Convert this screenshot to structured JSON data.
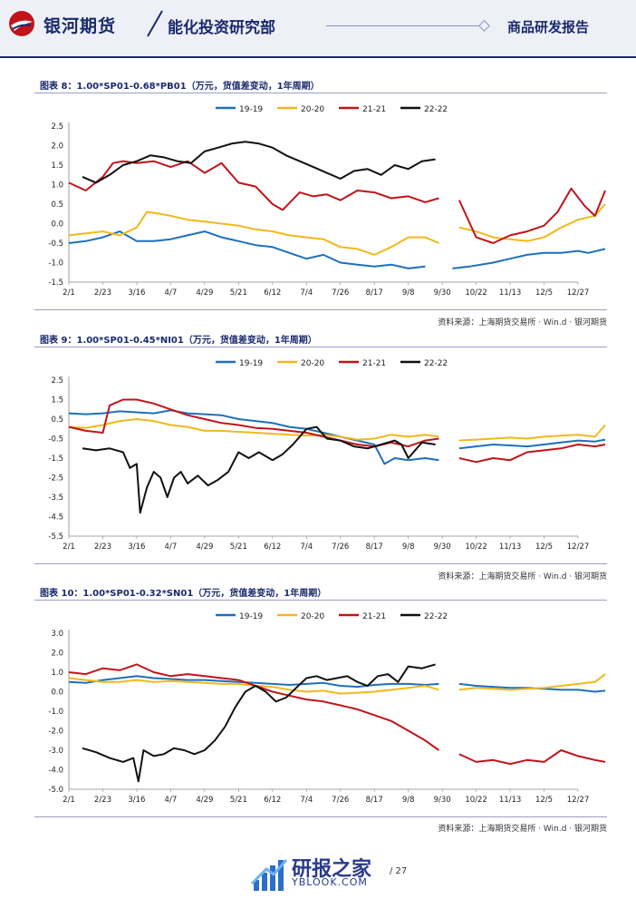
{
  "header": {
    "company": "银河期货",
    "department": "能化投资研究部",
    "report_type": "商品研发报告"
  },
  "charts_meta": [
    {
      "title": "图表 8：1.00*SP01-0.68*PB01（万元，货值差变动，1年周期）",
      "source": "资料来源：上海期货交易所 · Win.d · 银河期货"
    },
    {
      "title": "图表 9：1.00*SP01-0.45*NI01（万元，货值差变动，1年周期）",
      "source": "资料来源：上海期货交易所 · Win.d · 银河期货"
    },
    {
      "title": "图表 10：1.00*SP01-0.32*SN01（万元，货值差变动，1年周期）",
      "source": "资料来源：上海期货交易所 · Win.d · 银河期货"
    }
  ],
  "colors": {
    "s1919": "#1f6fba",
    "s2020": "#f2b81c",
    "s2121": "#c0141b",
    "s2222": "#111111"
  },
  "chart_data": [
    {
      "type": "line",
      "title": "图表 8：1.00*SP01-0.68*PB01（万元，货值差变动，1年周期）",
      "categories": [
        "2/1",
        "2/23",
        "3/16",
        "4/7",
        "4/29",
        "5/21",
        "6/12",
        "7/4",
        "7/26",
        "8/17",
        "9/8",
        "9/30",
        "10/22",
        "11/13",
        "12/5",
        "12/27"
      ],
      "ylim": [
        -1.5,
        2.5
      ],
      "yticks": [
        "2.5",
        "2.0",
        "1.5",
        "1.0",
        "0.5",
        "0.0",
        "-0.5",
        "-1.0",
        "-1.5"
      ],
      "series": [
        {
          "name": "19-19",
          "x": [
            0,
            0.5,
            1,
            1.5,
            2,
            2.5,
            3,
            3.5,
            4,
            4.5,
            5,
            5.5,
            6,
            6.5,
            7,
            7.5,
            8,
            8.5,
            9,
            9.5,
            10,
            10.5,
            11.3,
            11.8,
            12.5,
            13,
            13.5,
            14,
            14.5,
            15,
            15.3,
            15.8
          ],
          "values": [
            -0.5,
            -0.45,
            -0.35,
            -0.2,
            -0.45,
            -0.45,
            -0.4,
            -0.3,
            -0.2,
            -0.35,
            -0.45,
            -0.55,
            -0.6,
            -0.75,
            -0.9,
            -0.8,
            -1.0,
            -1.05,
            -1.1,
            -1.05,
            -1.15,
            -1.1,
            -1.15,
            -1.1,
            -1.0,
            -0.9,
            -0.8,
            -0.75,
            -0.75,
            -0.7,
            -0.75,
            -0.65
          ]
        },
        {
          "name": "20-20",
          "x": [
            0,
            0.5,
            1,
            1.5,
            2,
            2.3,
            2.7,
            3,
            3.5,
            4,
            4.5,
            5,
            5.5,
            6,
            6.5,
            7,
            7.5,
            8,
            8.5,
            9,
            9.5,
            10,
            10.5,
            10.9,
            11.5,
            12,
            12.5,
            13,
            13.5,
            14,
            14.5,
            15,
            15.5,
            15.8
          ],
          "values": [
            -0.3,
            -0.25,
            -0.2,
            -0.3,
            -0.1,
            0.3,
            0.25,
            0.2,
            0.1,
            0.05,
            0.0,
            -0.05,
            -0.15,
            -0.2,
            -0.3,
            -0.35,
            -0.4,
            -0.6,
            -0.65,
            -0.8,
            -0.6,
            -0.35,
            -0.35,
            -0.5,
            -0.1,
            -0.2,
            -0.35,
            -0.4,
            -0.45,
            -0.35,
            -0.1,
            0.1,
            0.2,
            0.5
          ]
        },
        {
          "name": "21-21",
          "x": [
            0,
            0.5,
            1,
            1.3,
            1.6,
            2,
            2.5,
            3,
            3.5,
            4,
            4.5,
            5,
            5.5,
            6,
            6.3,
            6.8,
            7.2,
            7.6,
            8,
            8.5,
            9,
            9.5,
            10,
            10.5,
            10.9,
            11.5,
            12,
            12.5,
            13,
            13.5,
            14,
            14.4,
            14.8,
            15.2,
            15.5,
            15.8
          ],
          "values": [
            1.05,
            0.85,
            1.2,
            1.55,
            1.6,
            1.55,
            1.6,
            1.45,
            1.6,
            1.3,
            1.55,
            1.05,
            0.95,
            0.5,
            0.35,
            0.8,
            0.7,
            0.75,
            0.6,
            0.85,
            0.8,
            0.65,
            0.7,
            0.55,
            0.65,
            0.6,
            -0.35,
            -0.5,
            -0.3,
            -0.2,
            -0.05,
            0.3,
            0.9,
            0.45,
            0.2,
            0.85
          ]
        },
        {
          "name": "22-22",
          "x": [
            0.4,
            0.8,
            1.2,
            1.6,
            2,
            2.4,
            2.8,
            3.2,
            3.6,
            4,
            4.4,
            4.8,
            5.2,
            5.6,
            6,
            6.4,
            6.8,
            7.2,
            7.6,
            8,
            8.4,
            8.8,
            9.2,
            9.6,
            10,
            10.4,
            10.8
          ],
          "values": [
            1.2,
            1.05,
            1.25,
            1.5,
            1.6,
            1.75,
            1.7,
            1.6,
            1.55,
            1.85,
            1.95,
            2.05,
            2.1,
            2.05,
            1.95,
            1.75,
            1.6,
            1.45,
            1.3,
            1.15,
            1.35,
            1.4,
            1.25,
            1.5,
            1.4,
            1.6,
            1.65
          ]
        }
      ]
    },
    {
      "type": "line",
      "title": "图表 9：1.00*SP01-0.45*NI01（万元，货值差变动，1年周期）",
      "categories": [
        "2/1",
        "2/23",
        "3/16",
        "4/7",
        "4/29",
        "5/21",
        "6/12",
        "7/4",
        "7/26",
        "8/17",
        "9/8",
        "9/30",
        "10/22",
        "11/13",
        "12/5",
        "12/27"
      ],
      "ylim": [
        -5.5,
        2.5
      ],
      "yticks": [
        "2.5",
        "1.5",
        "0.5",
        "-0.5",
        "-1.5",
        "-2.5",
        "-3.5",
        "-4.5",
        "-5.5"
      ],
      "series": [
        {
          "name": "19-19",
          "x": [
            0,
            0.5,
            1,
            1.5,
            2,
            2.5,
            3,
            3.5,
            4,
            4.5,
            5,
            5.5,
            6,
            6.5,
            7,
            7.5,
            8,
            8.5,
            9,
            9.3,
            9.6,
            10,
            10.5,
            10.9,
            11.5,
            12,
            12.5,
            13,
            13.5,
            14,
            14.5,
            15,
            15.5,
            15.8
          ],
          "values": [
            0.8,
            0.75,
            0.8,
            0.9,
            0.85,
            0.8,
            0.95,
            0.8,
            0.75,
            0.7,
            0.5,
            0.4,
            0.3,
            0.1,
            0.0,
            -0.2,
            -0.4,
            -0.6,
            -0.8,
            -1.8,
            -1.5,
            -1.6,
            -1.5,
            -1.6,
            -1.0,
            -0.9,
            -0.8,
            -0.85,
            -0.9,
            -0.8,
            -0.7,
            -0.6,
            -0.65,
            -0.55
          ]
        },
        {
          "name": "20-20",
          "x": [
            0,
            0.5,
            1,
            1.5,
            2,
            2.5,
            3,
            3.5,
            4,
            4.5,
            5,
            5.5,
            6,
            6.5,
            7,
            7.5,
            8,
            8.5,
            9,
            9.5,
            10,
            10.5,
            10.9,
            11.5,
            12,
            12.5,
            13,
            13.5,
            14,
            14.5,
            15,
            15.5,
            15.8
          ],
          "values": [
            0.1,
            0.05,
            0.2,
            0.4,
            0.5,
            0.4,
            0.2,
            0.1,
            -0.1,
            -0.1,
            -0.15,
            -0.2,
            -0.25,
            -0.3,
            -0.35,
            -0.3,
            -0.4,
            -0.55,
            -0.5,
            -0.3,
            -0.4,
            -0.3,
            -0.4,
            -0.6,
            -0.55,
            -0.5,
            -0.45,
            -0.5,
            -0.4,
            -0.35,
            -0.3,
            -0.4,
            0.2
          ]
        },
        {
          "name": "21-21",
          "x": [
            0,
            0.5,
            1,
            1.2,
            1.6,
            2,
            2.5,
            3,
            3.5,
            4,
            4.5,
            5,
            5.5,
            6,
            6.5,
            7,
            7.5,
            8,
            8.5,
            9,
            9.5,
            10,
            10.5,
            10.9,
            11.5,
            12,
            12.5,
            13,
            13.5,
            14,
            14.5,
            15,
            15.5,
            15.8
          ],
          "values": [
            0.1,
            -0.1,
            -0.2,
            1.2,
            1.5,
            1.5,
            1.3,
            1.0,
            0.7,
            0.5,
            0.3,
            0.2,
            0.05,
            0.0,
            -0.1,
            -0.2,
            -0.4,
            -0.6,
            -0.8,
            -0.9,
            -0.7,
            -0.9,
            -0.6,
            -0.5,
            -1.5,
            -1.7,
            -1.5,
            -1.6,
            -1.2,
            -1.1,
            -1.0,
            -0.8,
            -0.9,
            -0.8
          ]
        },
        {
          "name": "22-22",
          "x": [
            0.4,
            0.8,
            1.2,
            1.6,
            1.8,
            2,
            2.1,
            2.3,
            2.5,
            2.7,
            2.9,
            3.1,
            3.3,
            3.5,
            3.8,
            4.1,
            4.4,
            4.7,
            5,
            5.3,
            5.6,
            6,
            6.3,
            6.6,
            7,
            7.3,
            7.6,
            8,
            8.4,
            8.8,
            9.2,
            9.6,
            9.8,
            10,
            10.4,
            10.8
          ],
          "values": [
            -1.0,
            -1.1,
            -1.0,
            -1.2,
            -2.0,
            -1.8,
            -4.3,
            -3.0,
            -2.2,
            -2.5,
            -3.5,
            -2.5,
            -2.2,
            -2.8,
            -2.4,
            -2.9,
            -2.6,
            -2.2,
            -1.2,
            -1.5,
            -1.2,
            -1.6,
            -1.3,
            -0.8,
            0.0,
            0.1,
            -0.5,
            -0.6,
            -0.9,
            -1.0,
            -0.8,
            -0.6,
            -0.8,
            -1.5,
            -0.7,
            -0.8
          ]
        }
      ]
    },
    {
      "type": "line",
      "title": "图表 10：1.00*SP01-0.32*SN01（万元，货值差变动，1年周期）",
      "categories": [
        "2/1",
        "2/23",
        "3/16",
        "4/7",
        "4/29",
        "5/21",
        "6/12",
        "7/4",
        "7/26",
        "8/17",
        "9/8",
        "9/30",
        "10/22",
        "11/13",
        "12/5",
        "12/27"
      ],
      "ylim": [
        -5.0,
        3.0
      ],
      "yticks": [
        "3.0",
        "2.0",
        "1.0",
        "0.0",
        "-1.0",
        "-2.0",
        "-3.0",
        "-4.0",
        "-5.0"
      ],
      "series": [
        {
          "name": "19-19",
          "x": [
            0,
            0.5,
            1,
            1.5,
            2,
            2.5,
            3,
            3.5,
            4,
            4.5,
            5,
            5.5,
            6,
            6.5,
            7,
            7.5,
            8,
            8.5,
            9,
            9.5,
            10,
            10.5,
            10.9,
            11.5,
            12,
            12.5,
            13,
            13.5,
            14,
            14.5,
            15,
            15.5,
            15.8
          ],
          "values": [
            0.5,
            0.45,
            0.6,
            0.7,
            0.8,
            0.7,
            0.65,
            0.6,
            0.6,
            0.55,
            0.5,
            0.45,
            0.4,
            0.35,
            0.4,
            0.45,
            0.3,
            0.25,
            0.35,
            0.4,
            0.4,
            0.35,
            0.4,
            0.4,
            0.3,
            0.25,
            0.2,
            0.2,
            0.15,
            0.1,
            0.1,
            0.0,
            0.05
          ]
        },
        {
          "name": "20-20",
          "x": [
            0,
            0.5,
            1,
            1.5,
            2,
            2.5,
            3,
            3.5,
            4,
            4.5,
            5,
            5.5,
            6,
            6.5,
            7,
            7.5,
            8,
            8.5,
            9,
            9.5,
            10,
            10.5,
            10.9,
            11.5,
            12,
            12.5,
            13,
            13.5,
            14,
            14.5,
            15,
            15.5,
            15.8
          ],
          "values": [
            0.7,
            0.6,
            0.5,
            0.5,
            0.6,
            0.5,
            0.55,
            0.5,
            0.45,
            0.4,
            0.4,
            0.3,
            0.25,
            0.1,
            0.0,
            0.05,
            -0.1,
            -0.05,
            0.0,
            0.1,
            0.2,
            0.3,
            0.1,
            0.1,
            0.2,
            0.15,
            0.1,
            0.15,
            0.2,
            0.3,
            0.4,
            0.5,
            0.9
          ]
        },
        {
          "name": "21-21",
          "x": [
            0,
            0.5,
            1,
            1.5,
            2,
            2.5,
            3,
            3.5,
            4,
            4.5,
            5,
            5.5,
            6,
            6.5,
            7,
            7.5,
            8,
            8.5,
            9,
            9.5,
            10,
            10.5,
            10.9,
            11.5,
            12,
            12.5,
            13,
            13.5,
            14,
            14.5,
            15,
            15.5,
            15.8
          ],
          "values": [
            1.0,
            0.9,
            1.2,
            1.1,
            1.4,
            1.0,
            0.8,
            0.9,
            0.8,
            0.7,
            0.6,
            0.3,
            0.0,
            -0.2,
            -0.4,
            -0.5,
            -0.7,
            -0.9,
            -1.2,
            -1.5,
            -2.0,
            -2.5,
            -3.0,
            -3.2,
            -3.6,
            -3.5,
            -3.7,
            -3.5,
            -3.6,
            -3.0,
            -3.3,
            -3.5,
            -3.6
          ]
        },
        {
          "name": "22-22",
          "x": [
            0.4,
            0.8,
            1.2,
            1.6,
            1.9,
            2.05,
            2.2,
            2.5,
            2.8,
            3.1,
            3.4,
            3.7,
            4,
            4.3,
            4.6,
            4.9,
            5.2,
            5.5,
            5.8,
            6.1,
            6.4,
            6.7,
            7,
            7.3,
            7.6,
            7.9,
            8.2,
            8.5,
            8.8,
            9.1,
            9.4,
            9.7,
            10,
            10.4,
            10.8
          ],
          "values": [
            -2.9,
            -3.1,
            -3.4,
            -3.6,
            -3.4,
            -4.6,
            -3.0,
            -3.3,
            -3.2,
            -2.9,
            -3.0,
            -3.2,
            -3.0,
            -2.5,
            -1.8,
            -0.8,
            0.0,
            0.3,
            0.0,
            -0.5,
            -0.3,
            0.2,
            0.7,
            0.8,
            0.6,
            0.7,
            0.8,
            0.5,
            0.3,
            0.8,
            0.9,
            0.5,
            1.3,
            1.2,
            1.4
          ]
        }
      ]
    }
  ],
  "footer": {
    "site_name": "研报之家",
    "site_url": "YBLOOK.COM",
    "page": "/ 27"
  }
}
